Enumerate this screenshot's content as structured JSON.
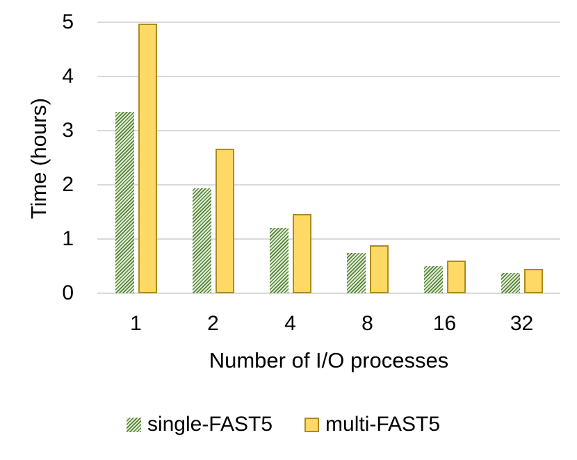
{
  "chart_data": {
    "type": "bar",
    "title": "",
    "xlabel": "Number of I/O processes",
    "ylabel": "Time (hours)",
    "categories": [
      "1",
      "2",
      "4",
      "8",
      "16",
      "32"
    ],
    "series": [
      {
        "name": "single-FAST5",
        "style": "hatched-green",
        "values": [
          3.35,
          1.93,
          1.2,
          0.74,
          0.5,
          0.37
        ]
      },
      {
        "name": "multi-FAST5",
        "style": "solid-yellow",
        "values": [
          4.97,
          2.67,
          1.46,
          0.88,
          0.6,
          0.45
        ]
      }
    ],
    "ylim": [
      0,
      5
    ],
    "yticks": [
      0,
      1,
      2,
      3,
      4,
      5
    ],
    "grid": true,
    "legend_position": "bottom",
    "colors": {
      "hatch_dark_green": "#538135",
      "hatch_light_green": "#e3efd9",
      "yellow_fill": "#ffd966",
      "yellow_border": "#ad8a1e",
      "gridline": "#d9d9d9",
      "text": "#000000"
    }
  }
}
